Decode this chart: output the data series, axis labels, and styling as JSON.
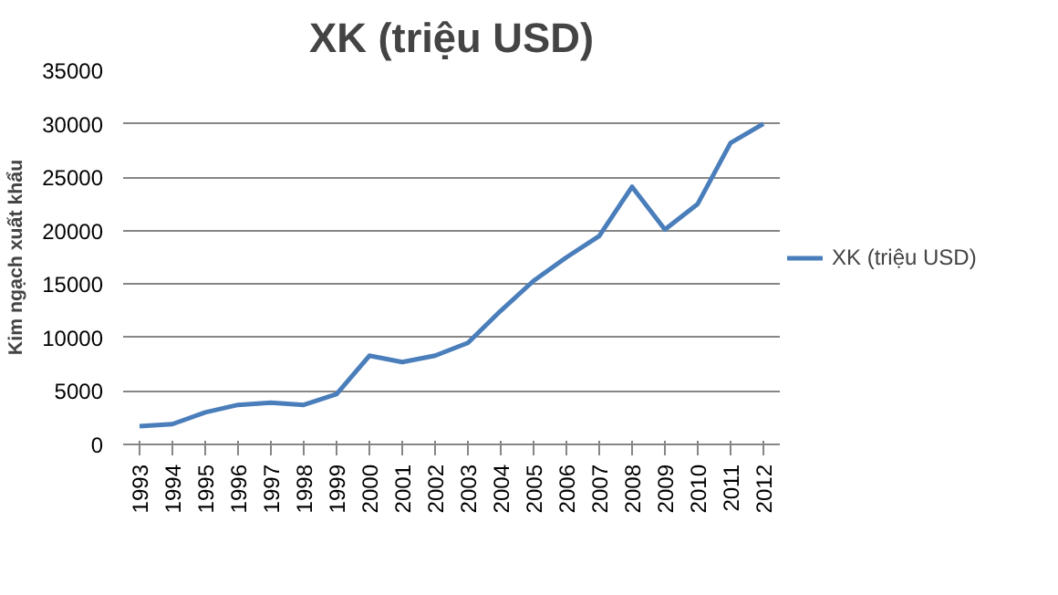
{
  "chart_data": {
    "type": "line",
    "title": "XK (triệu USD)",
    "ylabel": "Kim ngạch xuất khẩu",
    "categories": [
      "1993",
      "1994",
      "1995",
      "1996",
      "1997",
      "1998",
      "1999",
      "2000",
      "2001",
      "2002",
      "2003",
      "2004",
      "2005",
      "2006",
      "2007",
      "2008",
      "2009",
      "2010",
      "2011",
      "2012"
    ],
    "series": [
      {
        "name": "XK (triệu USD)",
        "color": "#4a7ebb",
        "values": [
          1700,
          1900,
          3000,
          3700,
          3900,
          3700,
          4700,
          8300,
          7700,
          8300,
          9500,
          12500,
          15300,
          17500,
          19500,
          24100,
          20100,
          22500,
          28200,
          30000
        ]
      }
    ],
    "ylim": [
      0,
      35000
    ],
    "yticks": [
      0,
      5000,
      10000,
      15000,
      20000,
      25000,
      30000,
      35000
    ],
    "grid": "y",
    "legend": "right",
    "line_style": "solid",
    "marker": "none"
  }
}
